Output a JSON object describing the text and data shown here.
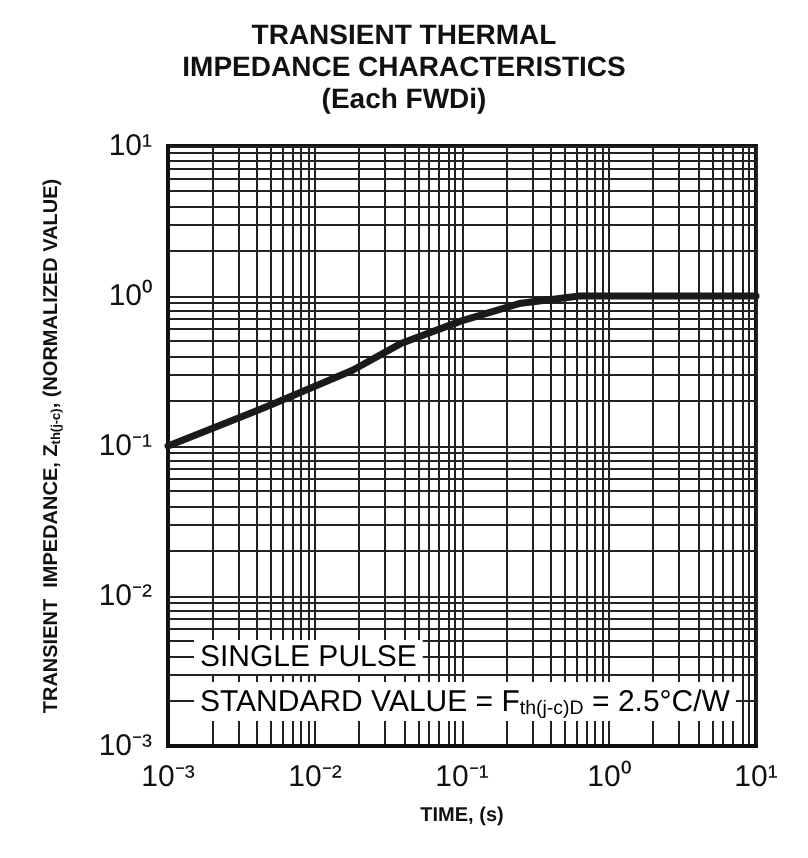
{
  "chart_data": {
    "type": "line",
    "title": "TRANSIENT THERMAL\nIMPEDANCE CHARACTERISTICS",
    "subtitle": "(Each FWDi)",
    "xlabel": "TIME, (s)",
    "ylabel": "TRANSIENT  IMPEDANCE, Z$_{th(j-c)}$, (NORMALIZED VALUE)",
    "x": [
      0.001,
      0.0045,
      0.01,
      0.018,
      0.038,
      0.098,
      0.245,
      0.63,
      1,
      10
    ],
    "series": [
      {
        "color": "#1a1a1a",
        "values": [
          0.1,
          0.18,
          0.25,
          0.32,
          0.48,
          0.68,
          0.89,
          1.0,
          1.0,
          1.0
        ]
      }
    ],
    "log": "xy",
    "xlim": [
      0.001,
      10
    ],
    "ylim": [
      0.001,
      10
    ],
    "xticks": [
      {
        "value": 0.001,
        "label": "10⁻³"
      },
      {
        "value": 0.01,
        "label": "10⁻²"
      },
      {
        "value": 0.1,
        "label": "10⁻¹"
      },
      {
        "value": 1,
        "label": "10⁰"
      },
      {
        "value": 10,
        "label": "10¹"
      }
    ],
    "yticks": [
      {
        "value": 0.001,
        "label": "10⁻³"
      },
      {
        "value": 0.01,
        "label": "10⁻²"
      },
      {
        "value": 0.1,
        "label": "10⁻¹"
      },
      {
        "value": 1,
        "label": "10⁰"
      },
      {
        "value": 10,
        "label": "10¹"
      }
    ],
    "annotations": [
      "SINGLE PULSE",
      "STANDARD VALUE = F$_{th(j-c)D}$ = 2.5°C/W"
    ],
    "grid": true,
    "marker": "none",
    "line_style": "solid"
  }
}
